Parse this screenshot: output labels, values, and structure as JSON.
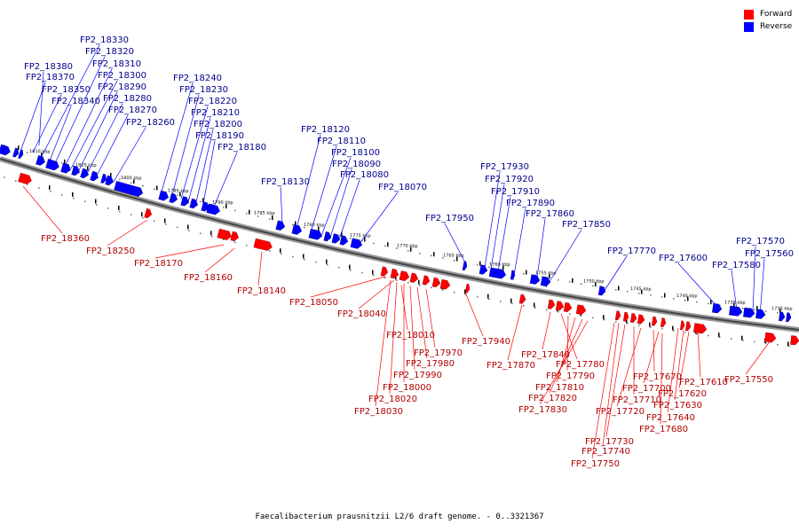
{
  "legend": {
    "forward": "Forward",
    "reverse": "Reverse",
    "forward_color": "#ff0000",
    "reverse_color": "#0000ff"
  },
  "caption": "Faecalibacterium prausnitzii L2/6 draft genome. - 0..3321367",
  "kbp_ticks": [
    "1810 kbp",
    "1805 kbp",
    "1800 kbp",
    "1795 kbp",
    "1790 kbp",
    "1785 kbp",
    "1780 kbp",
    "1775 kbp",
    "1770 kbp",
    "1765 kbp",
    "1760 kbp",
    "1755 kbp",
    "1750 kbp",
    "1745 kbp",
    "1740 kbp",
    "1735 kbp",
    "1730 kbp"
  ],
  "reverse_labels": [
    "FP2_18380",
    "FP2_18370",
    "FP2_18350",
    "FP2_18340",
    "FP2_18330",
    "FP2_18320",
    "FP2_18310",
    "FP2_18300",
    "FP2_18290",
    "FP2_18280",
    "FP2_18270",
    "FP2_18260",
    "FP2_18240",
    "FP2_18230",
    "FP2_18220",
    "FP2_18210",
    "FP2_18200",
    "FP2_18190",
    "FP2_18180",
    "FP2_18130",
    "FP2_18120",
    "FP2_18110",
    "FP2_18100",
    "FP2_18090",
    "FP2_18080",
    "FP2_18070",
    "FP2_17950",
    "FP2_17930",
    "FP2_17920",
    "FP2_17910",
    "FP2_17890",
    "FP2_17860",
    "FP2_17850",
    "FP2_17770",
    "FP2_17600",
    "FP2_17580",
    "FP2_17570",
    "FP2_17560"
  ],
  "forward_labels": [
    "FP2_18360",
    "FP2_18250",
    "FP2_18170",
    "FP2_18160",
    "FP2_18140",
    "FP2_18050",
    "FP2_18040",
    "FP2_18010",
    "FP2_17940",
    "FP2_17970",
    "FP2_17980",
    "FP2_17990",
    "FP2_18000",
    "FP2_18020",
    "FP2_18030",
    "FP2_17870",
    "FP2_17840",
    "FP2_17780",
    "FP2_17790",
    "FP2_17810",
    "FP2_17820",
    "FP2_17830",
    "FP2_17670",
    "FP2_17700",
    "FP2_17710",
    "FP2_17720",
    "FP2_17680",
    "FP2_17730",
    "FP2_17740",
    "FP2_17750",
    "FP2_17610",
    "FP2_17620",
    "FP2_17630",
    "FP2_17640",
    "FP2_17550"
  ]
}
